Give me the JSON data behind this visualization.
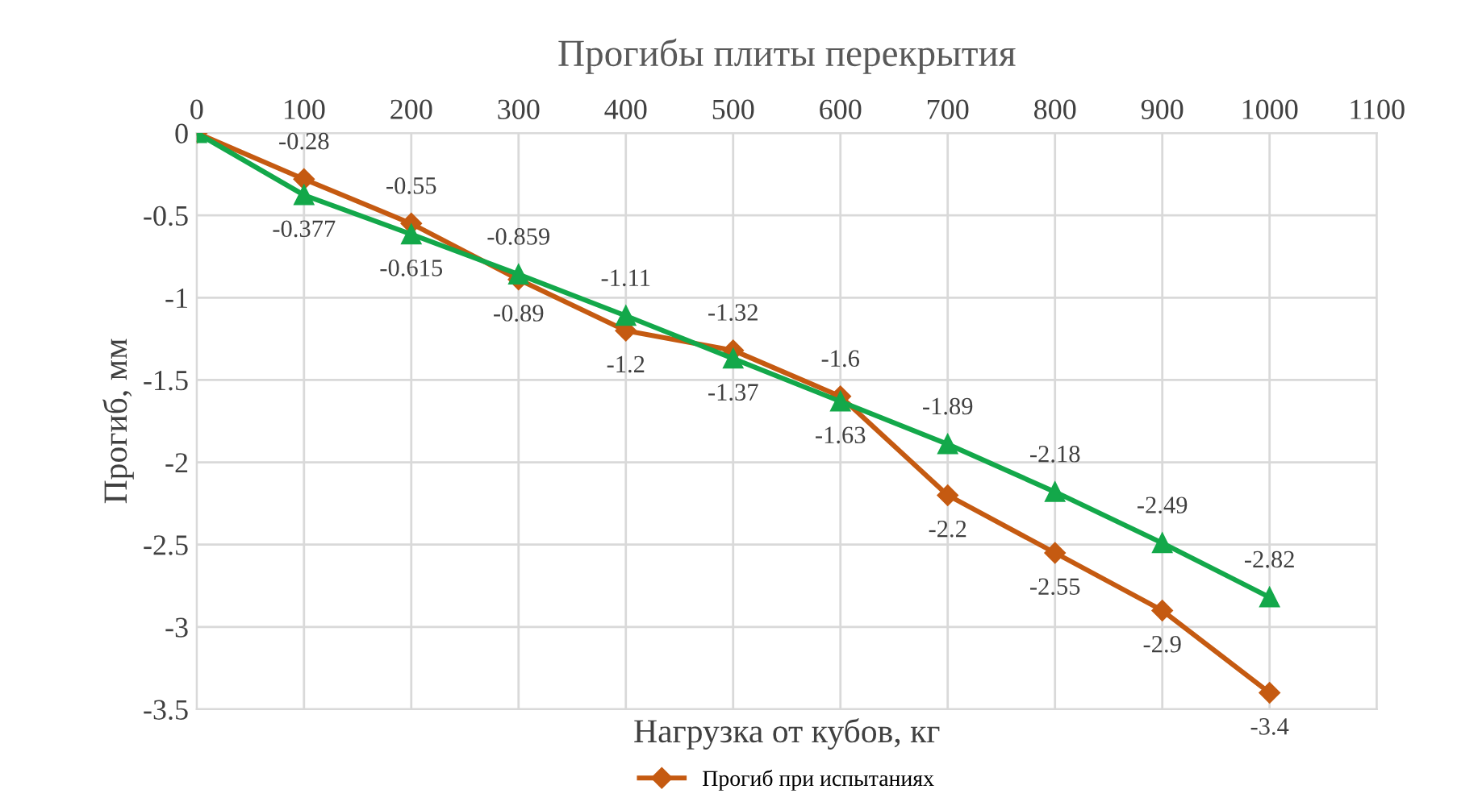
{
  "chart_data": {
    "type": "line",
    "title": "Прогибы плиты перекрытия",
    "xlabel": "Нагрузка от кубов, кг",
    "ylabel": "Прогиб, мм",
    "x": [
      0,
      100,
      200,
      300,
      400,
      500,
      600,
      700,
      800,
      900,
      1000
    ],
    "series": [
      {
        "name": "Прогиб при испытаниях",
        "color": "#c55a11",
        "marker": "diamond",
        "values": [
          0,
          -0.28,
          -0.55,
          -0.89,
          -1.2,
          -1.32,
          -1.6,
          -2.2,
          -2.55,
          -2.9,
          -3.4
        ],
        "value_labels": [
          null,
          "-0.28",
          "-0.55",
          "-0.89",
          "-1.2",
          "-1.32",
          "-1.6",
          "-2.2",
          "-2.55",
          "-2.9",
          "-3.4"
        ]
      },
      {
        "color": "#13a84a",
        "marker": "triangle",
        "values": [
          0,
          -0.377,
          -0.615,
          -0.859,
          -1.11,
          -1.37,
          -1.63,
          -1.89,
          -2.18,
          -2.49,
          -2.82
        ],
        "value_labels": [
          null,
          "-0.377",
          "-0.615",
          "-0.859",
          "-1.11",
          "-1.37",
          "-1.63",
          "-1.89",
          "-2.18",
          "-2.49",
          "-2.82"
        ]
      }
    ],
    "xlim": [
      0,
      1100
    ],
    "xticks": [
      0,
      100,
      200,
      300,
      400,
      500,
      600,
      700,
      800,
      900,
      1000,
      1100
    ],
    "ylim": [
      -3.5,
      0
    ],
    "yticks": [
      0,
      -0.5,
      -1,
      -1.5,
      -2,
      -2.5,
      -3,
      -3.5
    ],
    "grid": true,
    "legend": "bottom",
    "line_style": "solid"
  }
}
